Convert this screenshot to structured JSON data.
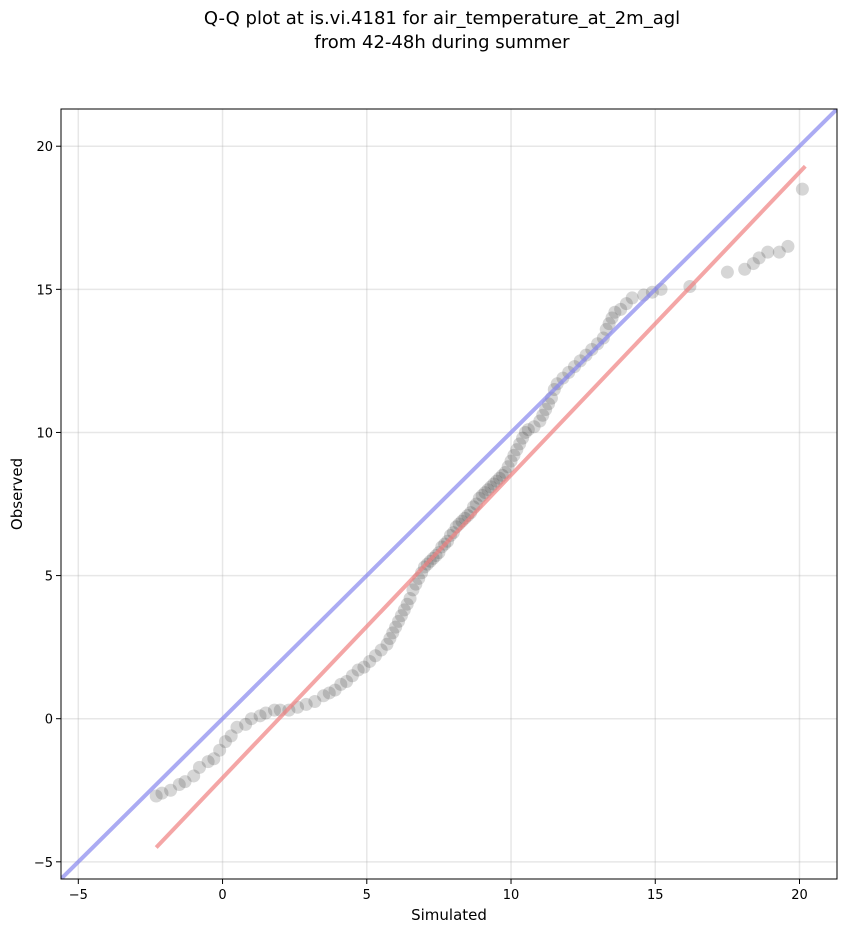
{
  "chart_data": {
    "type": "scatter",
    "title_lines": [
      "Q-Q plot at is.vi.4181 for air_temperature_at_2m_agl",
      "from 42-48h during summer"
    ],
    "xlabel": "Simulated",
    "ylabel": "Observed",
    "xlim": [
      -5.6,
      21.3
    ],
    "ylim": [
      -5.6,
      21.3
    ],
    "xticks": [
      -5,
      0,
      5,
      10,
      15,
      20
    ],
    "yticks": [
      -5,
      0,
      5,
      10,
      15,
      20
    ],
    "xtick_labels": [
      "−5",
      "0",
      "5",
      "10",
      "15",
      "20"
    ],
    "ytick_labels": [
      "−5",
      "0",
      "5",
      "10",
      "15",
      "20"
    ],
    "grid": true,
    "point_color": "#333333",
    "identity_line": {
      "color": "#8888ee",
      "from": [
        -5.6,
        -5.6
      ],
      "to": [
        21.3,
        21.3
      ]
    },
    "fit_line": {
      "color": "#f08080",
      "from": [
        -2.3,
        -4.5
      ],
      "to": [
        20.2,
        19.3
      ]
    },
    "points": {
      "x": [
        -2.3,
        -2.1,
        -1.8,
        -1.5,
        -1.3,
        -1.0,
        -0.8,
        -0.5,
        -0.3,
        -0.1,
        0.1,
        0.3,
        0.5,
        0.8,
        1.0,
        1.3,
        1.5,
        1.8,
        2.0,
        2.3,
        2.6,
        2.9,
        3.2,
        3.5,
        3.7,
        3.9,
        4.1,
        4.3,
        4.5,
        4.7,
        4.9,
        5.1,
        5.3,
        5.5,
        5.7,
        5.8,
        5.9,
        6.0,
        6.1,
        6.2,
        6.3,
        6.4,
        6.5,
        6.6,
        6.7,
        6.8,
        6.9,
        7.0,
        7.1,
        7.2,
        7.3,
        7.4,
        7.5,
        7.6,
        7.7,
        7.8,
        7.9,
        8.0,
        8.1,
        8.2,
        8.3,
        8.4,
        8.5,
        8.6,
        8.7,
        8.8,
        8.9,
        9.0,
        9.1,
        9.2,
        9.3,
        9.4,
        9.5,
        9.6,
        9.7,
        9.8,
        9.9,
        10.0,
        10.1,
        10.2,
        10.3,
        10.4,
        10.5,
        10.6,
        10.8,
        11.0,
        11.1,
        11.2,
        11.3,
        11.4,
        11.5,
        11.6,
        11.8,
        12.0,
        12.2,
        12.4,
        12.6,
        12.8,
        13.0,
        13.2,
        13.3,
        13.4,
        13.5,
        13.6,
        13.8,
        14.0,
        14.2,
        14.6,
        14.9,
        15.2,
        16.2,
        17.5,
        18.1,
        18.4,
        18.6,
        18.9,
        19.3,
        19.6,
        20.1
      ],
      "y": [
        -2.7,
        -2.6,
        -2.5,
        -2.3,
        -2.2,
        -2.0,
        -1.7,
        -1.5,
        -1.4,
        -1.1,
        -0.8,
        -0.6,
        -0.3,
        -0.2,
        0.0,
        0.1,
        0.2,
        0.3,
        0.3,
        0.3,
        0.4,
        0.5,
        0.6,
        0.8,
        0.9,
        1.0,
        1.2,
        1.3,
        1.5,
        1.7,
        1.8,
        2.0,
        2.2,
        2.4,
        2.6,
        2.8,
        3.0,
        3.2,
        3.4,
        3.6,
        3.8,
        4.0,
        4.2,
        4.5,
        4.7,
        4.9,
        5.1,
        5.3,
        5.4,
        5.5,
        5.6,
        5.7,
        5.8,
        6.0,
        6.1,
        6.2,
        6.4,
        6.5,
        6.7,
        6.8,
        6.9,
        7.0,
        7.1,
        7.2,
        7.4,
        7.5,
        7.7,
        7.8,
        7.9,
        8.0,
        8.1,
        8.2,
        8.3,
        8.4,
        8.5,
        8.6,
        8.8,
        9.0,
        9.2,
        9.4,
        9.6,
        9.8,
        10.0,
        10.1,
        10.2,
        10.4,
        10.6,
        10.8,
        11.0,
        11.2,
        11.5,
        11.7,
        11.9,
        12.1,
        12.3,
        12.5,
        12.7,
        12.9,
        13.1,
        13.3,
        13.6,
        13.8,
        14.0,
        14.2,
        14.3,
        14.5,
        14.7,
        14.8,
        14.9,
        15.0,
        15.1,
        15.6,
        15.7,
        15.9,
        16.1,
        16.3,
        16.3,
        16.5,
        18.5
      ]
    }
  }
}
